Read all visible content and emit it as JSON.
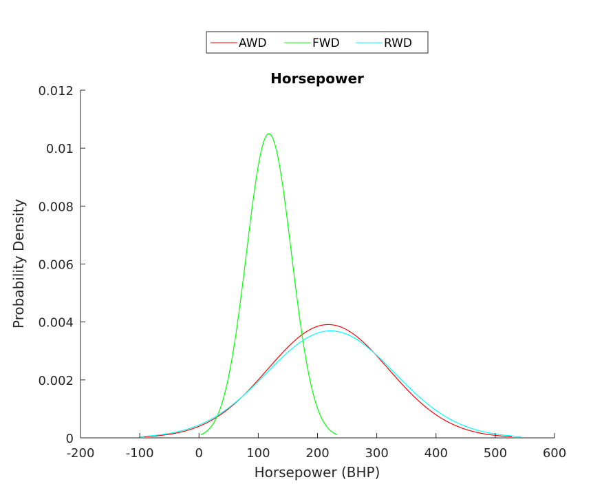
{
  "chart_data": {
    "type": "line",
    "title": "Horsepower",
    "xlabel": "Horsepower (BHP)",
    "ylabel": "Probability Density",
    "xlim": [
      -200,
      600
    ],
    "ylim": [
      0,
      0.012
    ],
    "x_ticks": [
      -200,
      -100,
      0,
      100,
      200,
      300,
      400,
      500,
      600
    ],
    "x_tick_labels": [
      "-200",
      "-100",
      "0",
      "100",
      "200",
      "300",
      "400",
      "500",
      "600"
    ],
    "y_ticks": [
      0,
      0.002,
      0.004,
      0.006,
      0.008,
      0.01,
      0.012
    ],
    "y_tick_labels": [
      "0",
      "0.002",
      "0.004",
      "0.006",
      "0.008",
      "0.01",
      "0.012"
    ],
    "grid": false,
    "legend_position": "top-center-outside",
    "legend_orientation": "horizontal",
    "series": [
      {
        "name": "AWD",
        "color": "#ff0000",
        "distribution": "normal",
        "mean": 218,
        "std": 102,
        "x_range": [
          -93,
          528
        ],
        "x": [
          -93,
          -50,
          0,
          50,
          100,
          150,
          200,
          218,
          250,
          300,
          350,
          400,
          450,
          500,
          528
        ],
        "y": [
          4e-05,
          0.00013,
          0.0004,
          0.00101,
          0.00204,
          0.00314,
          0.00382,
          0.0039,
          0.00373,
          0.00281,
          0.00168,
          0.00078,
          0.00028,
          8e-05,
          4e-05
        ]
      },
      {
        "name": "FWD",
        "color": "#00ff00",
        "distribution": "normal",
        "mean": 118,
        "std": 38,
        "x_range": [
          3,
          233
        ],
        "x": [
          3,
          25,
          50,
          75,
          100,
          118,
          135,
          150,
          175,
          200,
          233
        ],
        "y": [
          0.00011,
          0.00053,
          0.00211,
          0.00552,
          0.00939,
          0.0105,
          0.00945,
          0.00738,
          0.00341,
          0.00102,
          0.00011
        ]
      },
      {
        "name": "RWD",
        "color": "#00ffff",
        "distribution": "normal",
        "mean": 222,
        "std": 108,
        "x_range": [
          -100,
          543
        ],
        "x": [
          -100,
          -50,
          0,
          50,
          100,
          150,
          200,
          222,
          250,
          300,
          350,
          400,
          450,
          500,
          543
        ],
        "y": [
          4e-05,
          0.00015,
          0.00043,
          0.00104,
          0.00196,
          0.00296,
          0.00362,
          0.0037,
          0.00357,
          0.00286,
          0.00186,
          0.00097,
          0.00041,
          0.00014,
          5e-05
        ]
      }
    ]
  }
}
